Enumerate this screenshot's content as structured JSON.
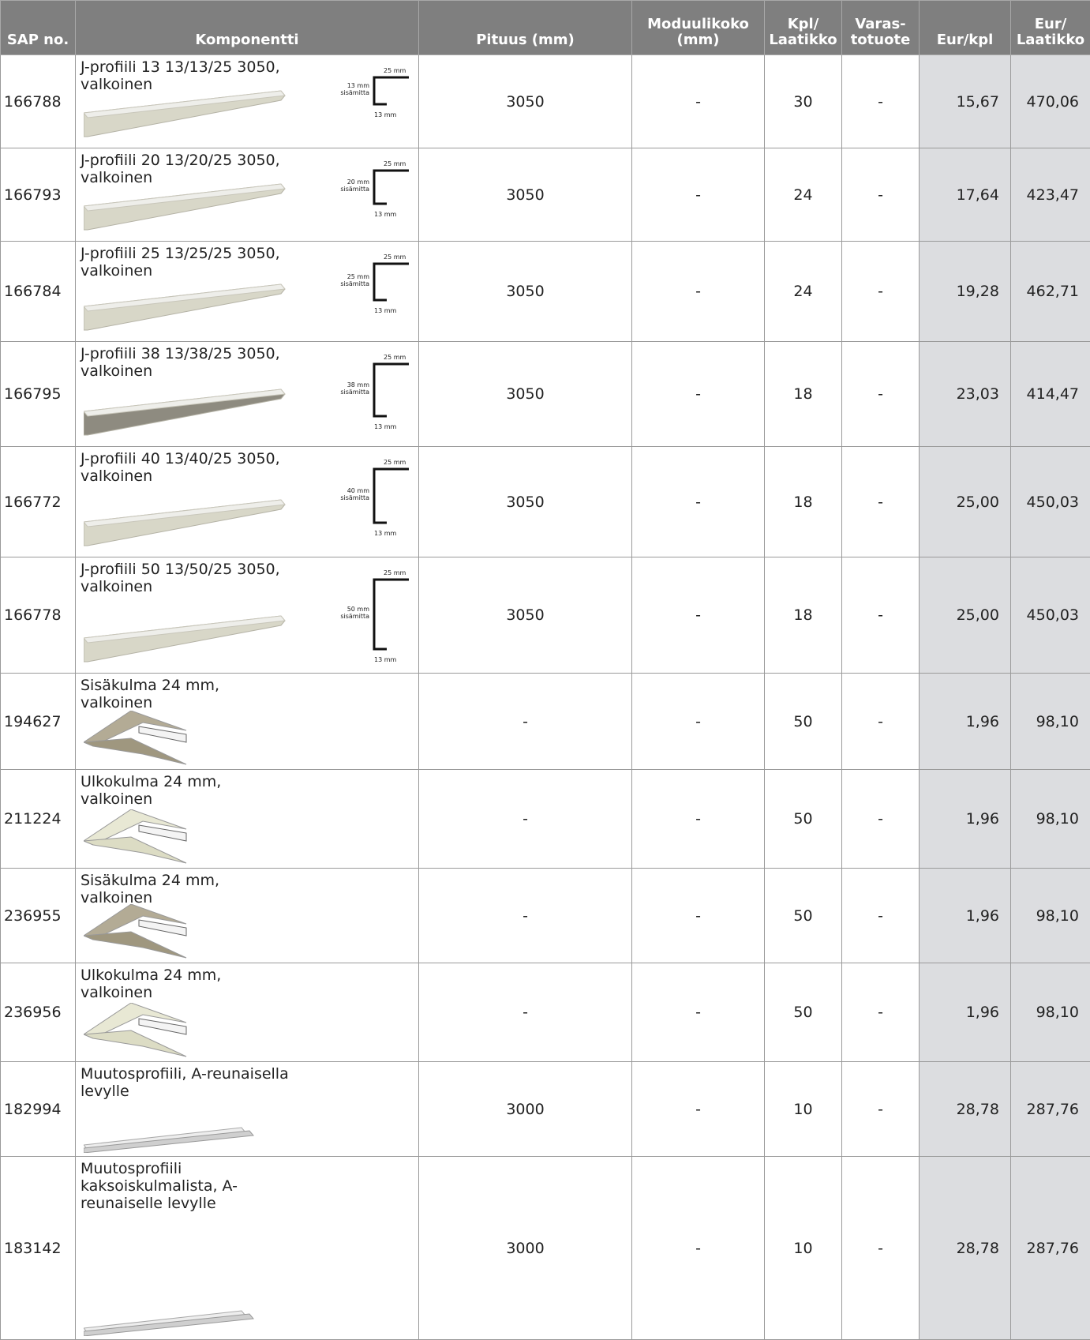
{
  "table": {
    "header": [
      "SAP no.",
      "Komponentti",
      "Pituus (mm)",
      "Moduulikoko (mm)",
      "Kpl/ Laatikko",
      "Varas- totuote",
      "Eur/kpl",
      "Eur/ Laatikko"
    ],
    "rows": [
      {
        "sap": "166788",
        "name": "J-profiili 13 13/13/25 3050, valkoinen",
        "diagram": {
          "top": "25 mm",
          "side": "13 mm",
          "note": "sisämitta",
          "bottom": "13 mm"
        },
        "cells": [
          "3050",
          "-",
          "30",
          "-",
          "15,67",
          "470,06"
        ]
      },
      {
        "sap": "166793",
        "name": "J-profiili 20 13/20/25 3050, valkoinen",
        "diagram": {
          "top": "25 mm",
          "side": "20 mm",
          "note": "sisämitta",
          "bottom": "13 mm"
        },
        "cells": [
          "3050",
          "-",
          "24",
          "-",
          "17,64",
          "423,47"
        ]
      },
      {
        "sap": "166784",
        "name": "J-profiili 25 13/25/25 3050, valkoinen",
        "diagram": {
          "top": "25 mm",
          "side": "25 mm",
          "note": "sisämitta",
          "bottom": "13 mm"
        },
        "cells": [
          "3050",
          "-",
          "24",
          "-",
          "19,28",
          "462,71"
        ]
      },
      {
        "sap": "166795",
        "name": "J-profiili 38 13/38/25 3050, valkoinen",
        "diagram": {
          "top": "25 mm",
          "side": "38 mm",
          "note": "sisämitta",
          "bottom": "13 mm"
        },
        "cells": [
          "3050",
          "-",
          "18",
          "-",
          "23,03",
          "414,47"
        ]
      },
      {
        "sap": "166772",
        "name": "J-profiili 40 13/40/25 3050, valkoinen",
        "diagram": {
          "top": "25 mm",
          "side": "40 mm",
          "note": "sisämitta",
          "bottom": "13 mm"
        },
        "cells": [
          "3050",
          "-",
          "18",
          "-",
          "25,00",
          "450,03"
        ]
      },
      {
        "sap": "166778",
        "name": "J-profiili 50 13/50/25 3050, valkoinen",
        "diagram": {
          "top": "25 mm",
          "side": "50 mm",
          "note": "sisämitta",
          "bottom": "13 mm"
        },
        "cells": [
          "3050",
          "-",
          "18",
          "-",
          "25,00",
          "450,03"
        ]
      },
      {
        "sap": "194627",
        "name": "Sisäkulma 24 mm, valkoinen",
        "cells": [
          "-",
          "-",
          "50",
          "-",
          "1,96",
          "98,10"
        ]
      },
      {
        "sap": "211224",
        "name": "Ulkokulma 24 mm, valkoinen",
        "cells": [
          "-",
          "-",
          "50",
          "-",
          "1,96",
          "98,10"
        ]
      },
      {
        "sap": "236955",
        "name": "Sisäkulma 24 mm, valkoinen",
        "cells": [
          "-",
          "-",
          "50",
          "-",
          "1,96",
          "98,10"
        ]
      },
      {
        "sap": "236956",
        "name": "Ulkokulma 24 mm, valkoinen",
        "cells": [
          "-",
          "-",
          "50",
          "-",
          "1,96",
          "98,10"
        ]
      },
      {
        "sap": "182994",
        "name": "Muutosprofiili, A-reunaisella levylle",
        "cells": [
          "3000",
          "-",
          "10",
          "-",
          "28,78",
          "287,76"
        ]
      },
      {
        "sap": "183142",
        "name": "Muutosprofiili kaksoiskulmalista, A-reunaiselle levylle",
        "cells": [
          "3000",
          "-",
          "10",
          "-",
          "28,78",
          "287,76"
        ]
      }
    ]
  }
}
